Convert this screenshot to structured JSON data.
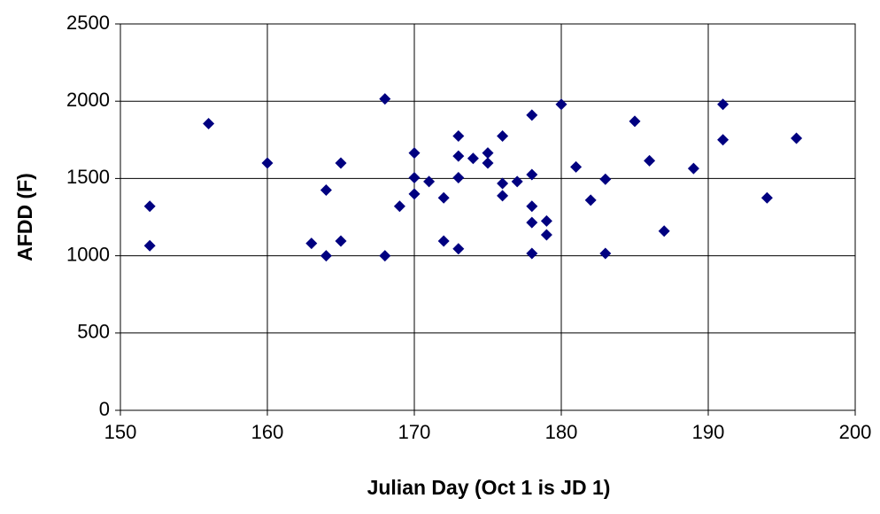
{
  "chart_data": {
    "type": "scatter",
    "xlabel": "Julian Day (Oct 1 is JD 1)",
    "ylabel": "AFDD (F)",
    "x": [
      152,
      152,
      156,
      160,
      163,
      164,
      164,
      165,
      165,
      168,
      168,
      169,
      170,
      170,
      170,
      171,
      172,
      172,
      173,
      173,
      173,
      173,
      174,
      175,
      175,
      176,
      176,
      176,
      177,
      178,
      178,
      178,
      178,
      178,
      179,
      179,
      180,
      181,
      182,
      183,
      183,
      185,
      186,
      187,
      189,
      191,
      191,
      194,
      196
    ],
    "values": [
      1320,
      1065,
      1855,
      1600,
      1080,
      1425,
      1000,
      1600,
      1095,
      2015,
      1000,
      1320,
      1665,
      1505,
      1400,
      1480,
      1375,
      1095,
      1775,
      1645,
      1505,
      1045,
      1630,
      1665,
      1600,
      1775,
      1468,
      1388,
      1480,
      1910,
      1525,
      1320,
      1215,
      1015,
      1225,
      1135,
      1980,
      1575,
      1360,
      1495,
      1015,
      1870,
      1615,
      1160,
      1565,
      1980,
      1750,
      1375,
      1760
    ],
    "color": "#000080",
    "xlim": [
      150,
      200
    ],
    "xticks": [
      150,
      160,
      170,
      180,
      190,
      200
    ],
    "ylim": [
      0,
      2500
    ],
    "yticks": [
      0,
      500,
      1000,
      1500,
      2000,
      2500
    ],
    "grid": true
  }
}
